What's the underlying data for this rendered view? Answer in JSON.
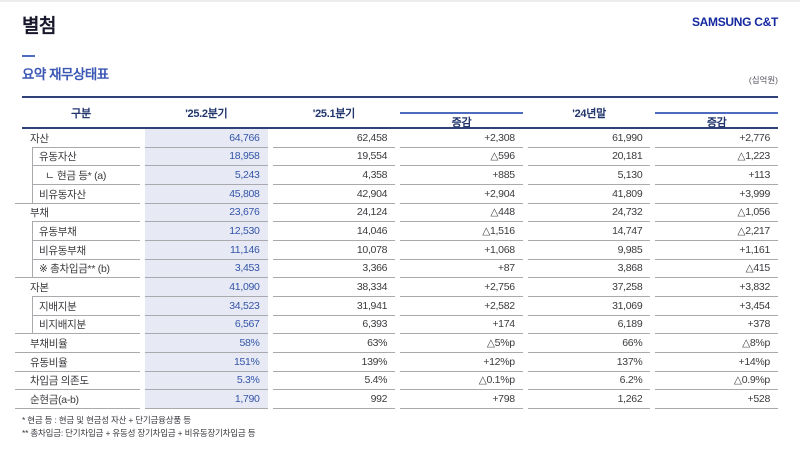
{
  "page": {
    "title": "별첨",
    "brand": "SAMSUNG C&T",
    "section_title": "요약 재무상태표",
    "unit_label": "(십억원)"
  },
  "colors": {
    "brand_blue": "#1428a0",
    "heading_blue": "#3a57b4",
    "header_navy": "#22366e",
    "table_border_navy": "#2f4178",
    "change_overline_blue": "#4d6cc0",
    "highlight_bg": "#e7e9f4",
    "highlight_text": "#3355a8",
    "body_text": "#3b3b3f",
    "row_line": "#aaaaae"
  },
  "table": {
    "columns": [
      "구분",
      "'25.2분기",
      "'25.1분기",
      "증감",
      "'24년말",
      "증감"
    ],
    "rows": [
      {
        "label": "자산",
        "indent": 0,
        "bracket": false,
        "line": "inset",
        "values": [
          "64,766",
          "62,458",
          "+2,308",
          "61,990",
          "+2,776"
        ]
      },
      {
        "label": "유동자산",
        "indent": 1,
        "bracket": true,
        "line": "inset",
        "values": [
          "18,958",
          "19,554",
          "△596",
          "20,181",
          "△1,223"
        ]
      },
      {
        "label": "ㄴ 현금 등* (a)",
        "indent": 2,
        "bracket": true,
        "line": "inset",
        "values": [
          "5,243",
          "4,358",
          "+885",
          "5,130",
          "+113"
        ]
      },
      {
        "label": "비유동자산",
        "indent": 1,
        "bracket": true,
        "line": "full",
        "values": [
          "45,808",
          "42,904",
          "+2,904",
          "41,809",
          "+3,999"
        ]
      },
      {
        "label": "부채",
        "indent": 0,
        "bracket": false,
        "line": "inset",
        "values": [
          "23,676",
          "24,124",
          "△448",
          "24,732",
          "△1,056"
        ]
      },
      {
        "label": "유동부채",
        "indent": 1,
        "bracket": true,
        "line": "inset",
        "values": [
          "12,530",
          "14,046",
          "△1,516",
          "14,747",
          "△2,217"
        ]
      },
      {
        "label": "비유동부채",
        "indent": 1,
        "bracket": true,
        "line": "inset",
        "values": [
          "11,146",
          "10,078",
          "+1,068",
          "9,985",
          "+1,161"
        ]
      },
      {
        "label": "※ 총차입금** (b)",
        "indent": 1,
        "bracket": true,
        "line": "full",
        "values": [
          "3,453",
          "3,366",
          "+87",
          "3,868",
          "△415"
        ]
      },
      {
        "label": "자본",
        "indent": 0,
        "bracket": false,
        "line": "inset",
        "values": [
          "41,090",
          "38,334",
          "+2,756",
          "37,258",
          "+3,832"
        ]
      },
      {
        "label": "지배지분",
        "indent": 1,
        "bracket": true,
        "line": "inset",
        "values": [
          "34,523",
          "31,941",
          "+2,582",
          "31,069",
          "+3,454"
        ]
      },
      {
        "label": "비지배지분",
        "indent": 1,
        "bracket": true,
        "line": "full",
        "values": [
          "6,567",
          "6,393",
          "+174",
          "6,189",
          "+378"
        ]
      },
      {
        "label": "부채비율",
        "indent": 0,
        "bracket": false,
        "line": "full",
        "values": [
          "58%",
          "63%",
          "△5%p",
          "66%",
          "△8%p"
        ]
      },
      {
        "label": "유동비율",
        "indent": 0,
        "bracket": false,
        "line": "full",
        "values": [
          "151%",
          "139%",
          "+12%p",
          "137%",
          "+14%p"
        ]
      },
      {
        "label": "차입금 의존도",
        "indent": 0,
        "bracket": false,
        "line": "full",
        "values": [
          "5.3%",
          "5.4%",
          "△0.1%p",
          "6.2%",
          "△0.9%p"
        ]
      },
      {
        "label": "순현금(a-b)",
        "indent": 0,
        "bracket": false,
        "line": "full",
        "values": [
          "1,790",
          "992",
          "+798",
          "1,262",
          "+528"
        ]
      }
    ]
  },
  "footnotes": [
    "* 현금 등 : 현금 및 현금성 자산 + 단기금융상품 등",
    "** 총차입금: 단기차입금 + 유동성 장기차입금 + 비유동장기차입금 등"
  ]
}
